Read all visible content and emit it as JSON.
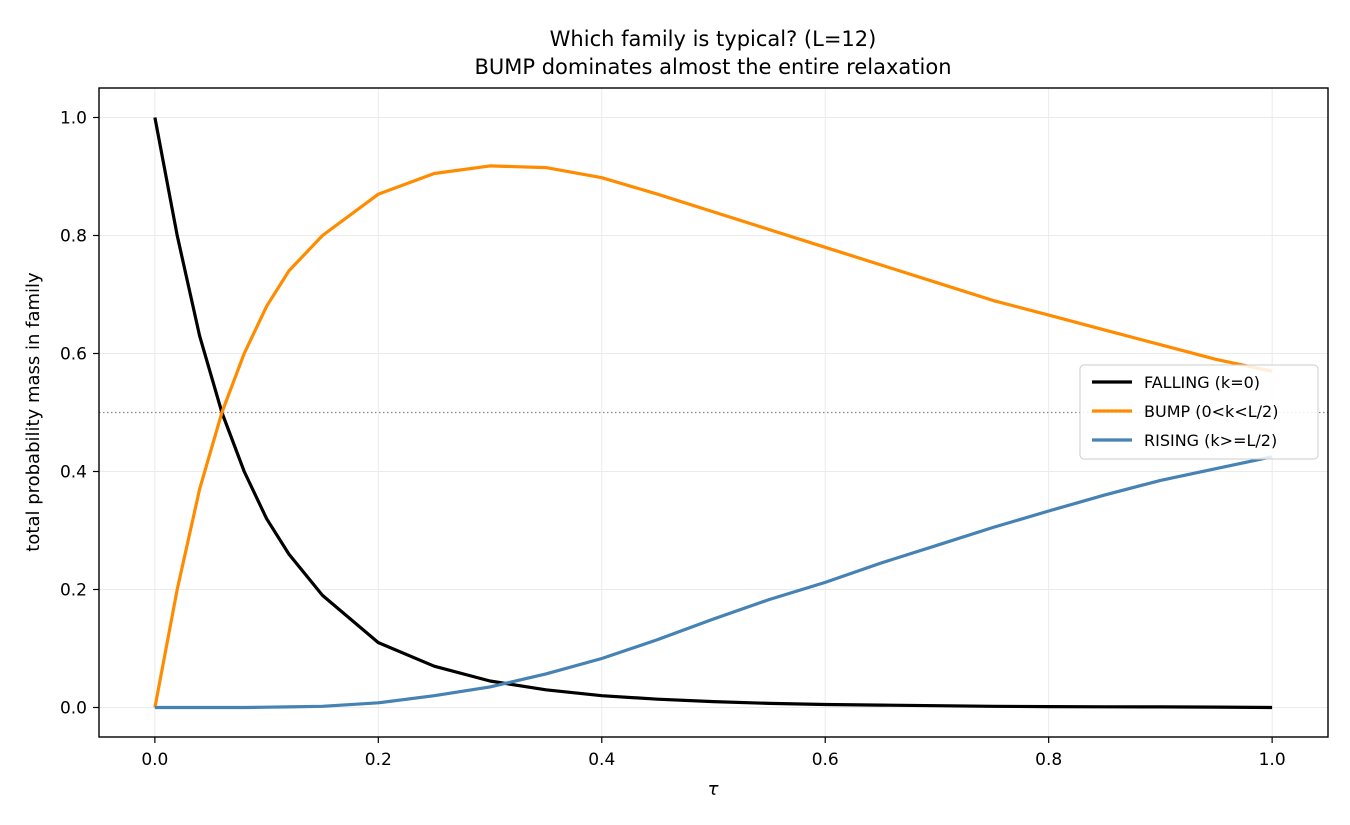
{
  "chart_data": {
    "type": "line",
    "title": "Which family is typical? (L=12)",
    "subtitle": "BUMP dominates almost the entire relaxation",
    "xlabel": "τ",
    "ylabel": "total probability mass in family",
    "xlim": [
      -0.05,
      1.05
    ],
    "ylim": [
      -0.05,
      1.05
    ],
    "xticks": [
      0.0,
      0.2,
      0.4,
      0.6,
      0.8,
      1.0
    ],
    "xtick_labels": [
      "0.0",
      "0.2",
      "0.4",
      "0.6",
      "0.8",
      "1.0"
    ],
    "yticks": [
      0.0,
      0.2,
      0.4,
      0.6,
      0.8,
      1.0
    ],
    "ytick_labels": [
      "0.0",
      "0.2",
      "0.4",
      "0.6",
      "0.8",
      "1.0"
    ],
    "grid": true,
    "legend_position": "center-right",
    "reference_line": {
      "y": 0.5,
      "style": "dotted",
      "color": "#888888"
    },
    "x": [
      0.0,
      0.02,
      0.04,
      0.06,
      0.08,
      0.1,
      0.12,
      0.15,
      0.2,
      0.25,
      0.3,
      0.35,
      0.4,
      0.45,
      0.5,
      0.55,
      0.6,
      0.65,
      0.7,
      0.75,
      0.8,
      0.85,
      0.9,
      0.95,
      1.0
    ],
    "series": [
      {
        "name": "FALLING (k=0)",
        "color": "#000000",
        "values": [
          1.0,
          0.8,
          0.63,
          0.5,
          0.4,
          0.32,
          0.26,
          0.19,
          0.11,
          0.07,
          0.045,
          0.03,
          0.02,
          0.014,
          0.01,
          0.007,
          0.005,
          0.004,
          0.003,
          0.002,
          0.0015,
          0.0012,
          0.001,
          0.0006,
          0.0
        ]
      },
      {
        "name": "BUMP (0<k<L/2)",
        "color": "#ff8c00",
        "values": [
          0.0,
          0.2,
          0.37,
          0.5,
          0.6,
          0.68,
          0.74,
          0.8,
          0.87,
          0.905,
          0.918,
          0.915,
          0.898,
          0.87,
          0.84,
          0.81,
          0.78,
          0.75,
          0.72,
          0.69,
          0.665,
          0.64,
          0.615,
          0.59,
          0.57
        ]
      },
      {
        "name": "RISING (k>=L/2)",
        "color": "#4682b4",
        "values": [
          0.0,
          0.0,
          0.0,
          0.0,
          0.0,
          0.0005,
          0.001,
          0.002,
          0.008,
          0.02,
          0.035,
          0.057,
          0.083,
          0.115,
          0.15,
          0.183,
          0.212,
          0.245,
          0.275,
          0.305,
          0.333,
          0.36,
          0.385,
          0.405,
          0.425
        ]
      }
    ]
  }
}
